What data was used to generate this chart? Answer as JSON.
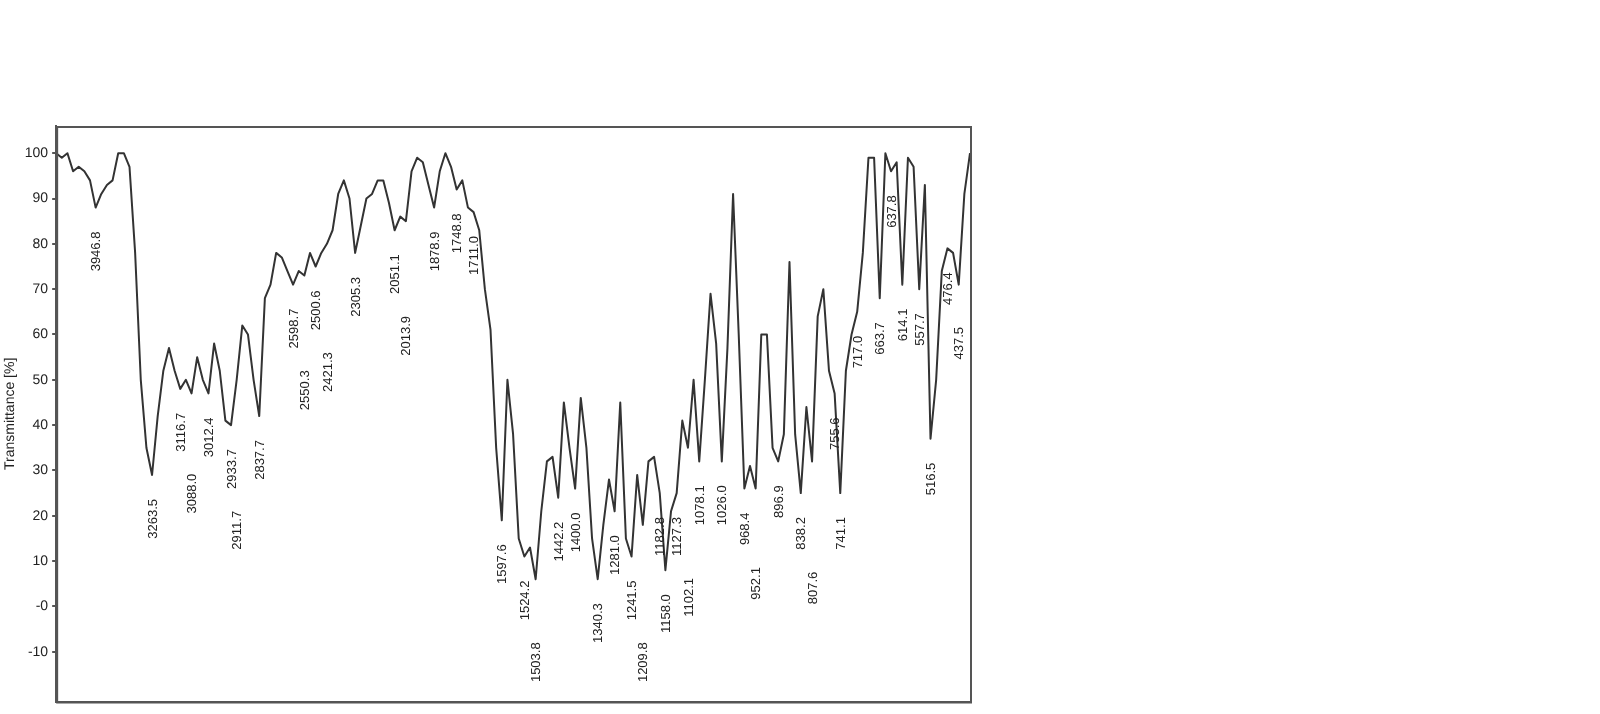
{
  "chart_data": {
    "type": "line",
    "ylabel": "Transmittance [%]",
    "ylim": [
      -21,
      106
    ],
    "grid": false,
    "legend": false,
    "yticks": [
      100,
      90,
      80,
      70,
      60,
      50,
      40,
      30,
      20,
      10,
      {
        "value": 0,
        "label": "-0"
      },
      -10
    ],
    "categories": [
      null,
      null,
      null,
      null,
      null,
      null,
      null,
      "3946.8",
      null,
      null,
      null,
      null,
      null,
      null,
      null,
      null,
      null,
      "3263.5",
      null,
      null,
      null,
      null,
      "3116.7",
      null,
      "3088.0",
      null,
      null,
      "3012.4",
      null,
      null,
      null,
      "2933.7",
      "2911.7",
      null,
      null,
      null,
      "2837.7",
      null,
      null,
      null,
      null,
      null,
      "2598.7",
      null,
      "2550.3",
      null,
      "2500.6",
      null,
      "2421.3",
      null,
      null,
      null,
      null,
      "2305.3",
      null,
      null,
      null,
      null,
      null,
      null,
      "2051.1",
      null,
      "2013.9",
      null,
      null,
      null,
      null,
      "1878.9",
      null,
      null,
      null,
      "1748.8",
      null,
      null,
      "1711.0",
      null,
      null,
      null,
      null,
      "1597.6",
      null,
      null,
      null,
      "1524.2",
      null,
      "1503.8",
      null,
      null,
      null,
      "1442.2",
      null,
      null,
      "1400.0",
      null,
      null,
      null,
      "1340.3",
      null,
      null,
      "1281.0",
      null,
      null,
      "1241.5",
      null,
      "1209.8",
      null,
      null,
      "1182.8",
      "1158.0",
      null,
      "1127.3",
      null,
      "1102.1",
      null,
      "1078.1",
      null,
      null,
      null,
      "1026.0",
      null,
      null,
      null,
      "968.4",
      null,
      "952.1",
      null,
      null,
      null,
      "896.9",
      null,
      null,
      null,
      "838.2",
      null,
      "807.6",
      null,
      null,
      null,
      "755.6",
      "741.1",
      null,
      null,
      "717.0",
      null,
      null,
      null,
      "663.7",
      null,
      "637.8",
      null,
      "614.1",
      null,
      null,
      "557.7",
      null,
      "516.5",
      null,
      null,
      "476.4",
      null,
      "437.5",
      null,
      null
    ],
    "series": [
      {
        "color": "#333333",
        "values": [
          100,
          99,
          100,
          96,
          97,
          96,
          94,
          88,
          91,
          93,
          94,
          100,
          100,
          97,
          78,
          50,
          35,
          29,
          42,
          52,
          57,
          52,
          48,
          50,
          47,
          55,
          50,
          47,
          58,
          52,
          41,
          40,
          50,
          62,
          60,
          50,
          42,
          68,
          71,
          78,
          77,
          74,
          71,
          74,
          73,
          78,
          75,
          78,
          80,
          83,
          91,
          94,
          90,
          78,
          84,
          90,
          91,
          94,
          94,
          89,
          83,
          86,
          85,
          96,
          99,
          98,
          93,
          88,
          96,
          100,
          97,
          92,
          94,
          88,
          87,
          83,
          70,
          61,
          35,
          19,
          50,
          38,
          15,
          11,
          13,
          6,
          21,
          32,
          33,
          24,
          45,
          35,
          26,
          46,
          35,
          15,
          6,
          18,
          28,
          21,
          45,
          15,
          11,
          29,
          18,
          32,
          33,
          25,
          8,
          21,
          25,
          41,
          35,
          50,
          32,
          50,
          69,
          58,
          32,
          57,
          91,
          60,
          26,
          31,
          26,
          60,
          60,
          35,
          32,
          38,
          76,
          38,
          25,
          44,
          32,
          64,
          70,
          52,
          47,
          25,
          52,
          60,
          65,
          78,
          99,
          99,
          68,
          100,
          96,
          98,
          71,
          99,
          97,
          70,
          93,
          37,
          50,
          74,
          79,
          78,
          71,
          91,
          100
        ],
        "line_style": "solid"
      }
    ]
  }
}
